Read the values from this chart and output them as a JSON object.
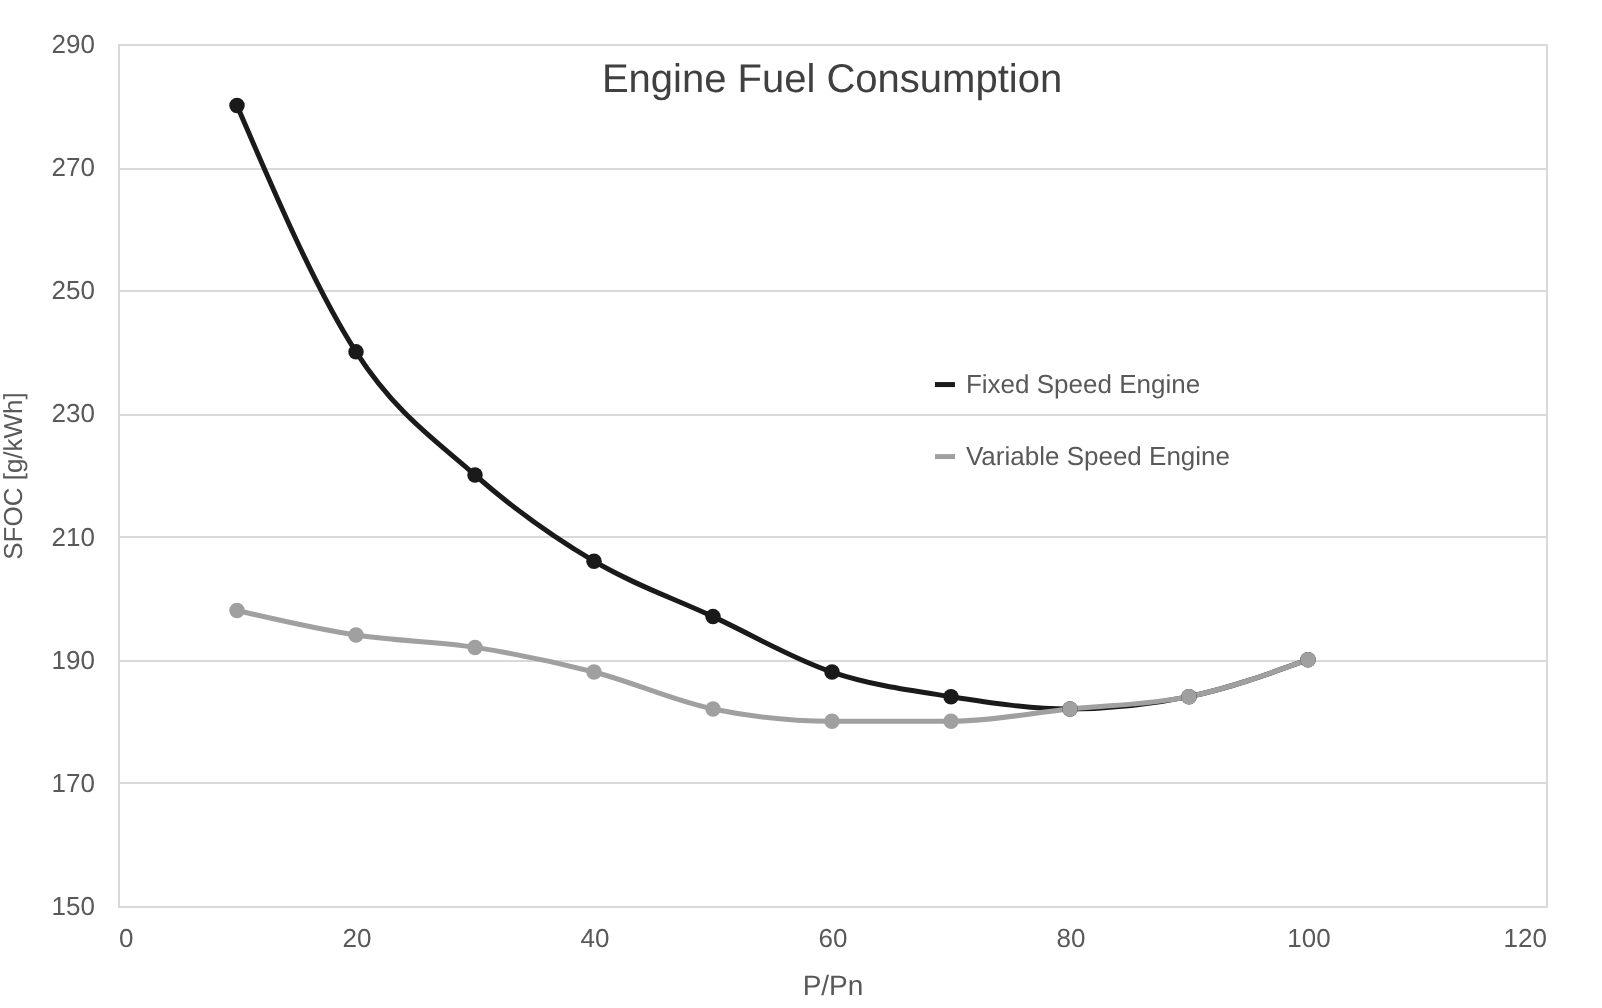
{
  "chart_data": {
    "type": "line",
    "title": "Engine Fuel Consumption",
    "xlabel": "P/Pn",
    "ylabel": "SFOC [g/kWh]",
    "x": [
      10,
      20,
      30,
      40,
      50,
      60,
      70,
      80,
      90,
      100
    ],
    "series": [
      {
        "name": "Fixed Speed Engine",
        "color": "#1a1a1a",
        "values": [
          280,
          240,
          220,
          206,
          197,
          188,
          184,
          182,
          184,
          190
        ]
      },
      {
        "name": "Variable Speed Engine",
        "color": "#a0a0a0",
        "values": [
          198,
          194,
          192,
          188,
          182,
          180,
          180,
          182,
          184,
          190
        ]
      }
    ],
    "xlim": [
      0,
      120
    ],
    "xticks": [
      0,
      20,
      40,
      60,
      80,
      100,
      120
    ],
    "ylim": [
      150,
      290
    ],
    "yticks": [
      150,
      170,
      190,
      210,
      230,
      250,
      270,
      290
    ],
    "grid": "y",
    "legend": "right",
    "marker": "circle",
    "line_style": "solid"
  }
}
